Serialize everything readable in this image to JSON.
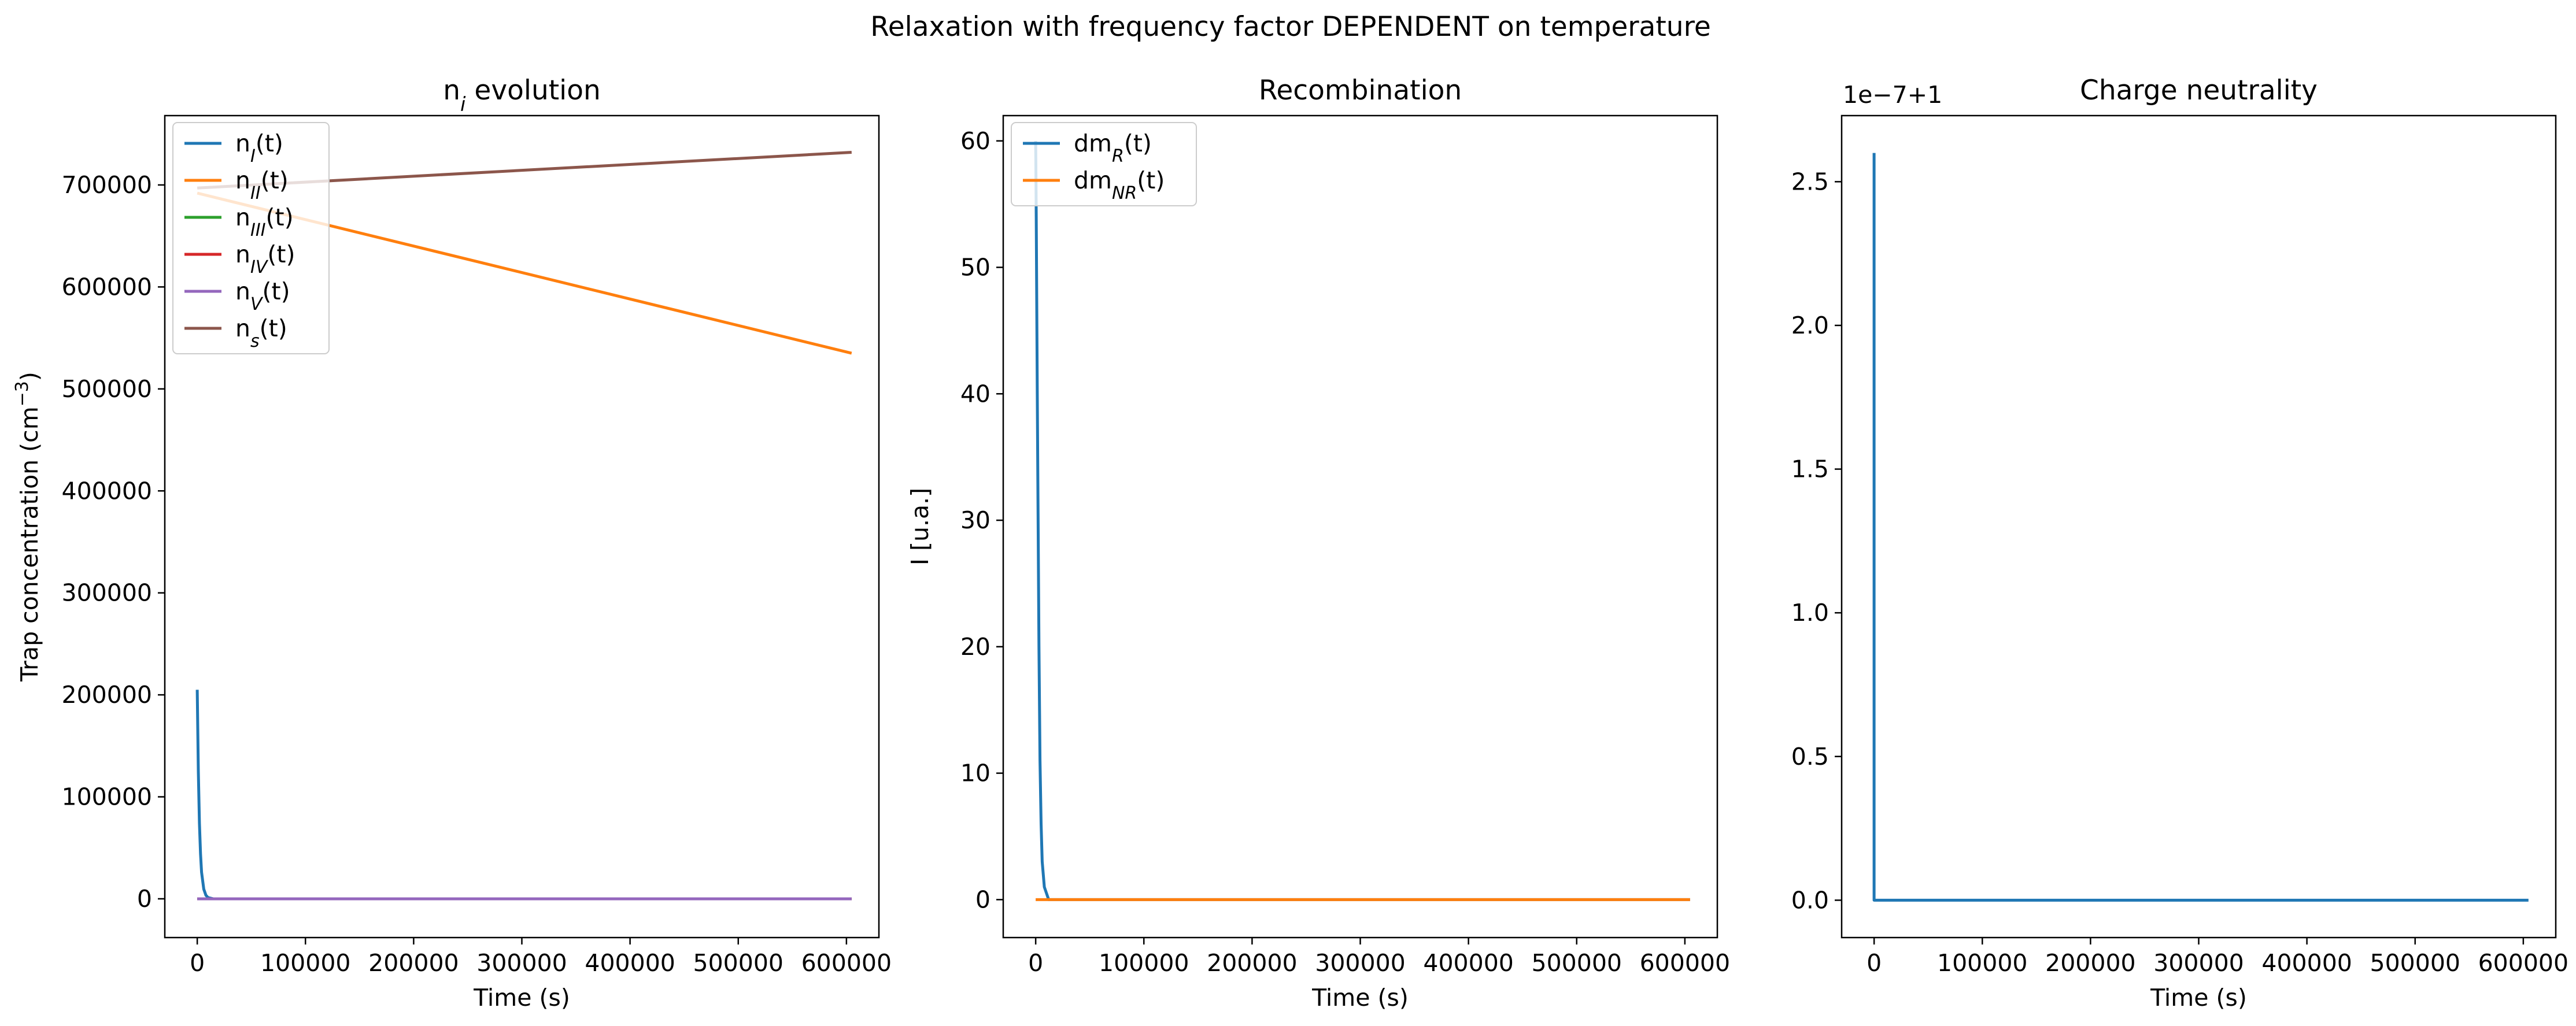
{
  "suptitle": "Relaxation with frequency factor DEPENDENT on temperature",
  "chart_data": [
    {
      "type": "line",
      "title_main": "n",
      "title_sub": "i",
      "title_rest": " evolution",
      "xlabel": "Time (s)",
      "ylabel_main": "Trap concentration (cm",
      "ylabel_sup": "−3",
      "ylabel_end": ")",
      "xlim": [
        -30000,
        630000
      ],
      "ylim": [
        -38000,
        768000
      ],
      "xticks": [
        0,
        100000,
        200000,
        300000,
        400000,
        500000,
        600000
      ],
      "xtick_labels": [
        "0",
        "100000",
        "200000",
        "300000",
        "400000",
        "500000",
        "600000"
      ],
      "yticks": [
        0,
        100000,
        200000,
        300000,
        400000,
        500000,
        600000,
        700000
      ],
      "ytick_labels": [
        "0",
        "100000",
        "200000",
        "300000",
        "400000",
        "500000",
        "600000",
        "700000"
      ],
      "legend_position": "upper left",
      "series": [
        {
          "label_main": "n",
          "label_sub": "I",
          "label_rest": "(t)",
          "color": "#1f77b4",
          "x": [
            0,
            1000,
            2000,
            3000,
            4000,
            6000,
            8000,
            10000,
            15000,
            604800
          ],
          "y": [
            205000,
            125000,
            74000,
            44000,
            26000,
            9500,
            3500,
            1200,
            0,
            0
          ]
        },
        {
          "label_main": "n",
          "label_sub": "II",
          "label_rest": "(t)",
          "color": "#ff7f0e",
          "x": [
            0,
            604800
          ],
          "y": [
            692000,
            535000
          ]
        },
        {
          "label_main": "n",
          "label_sub": "III",
          "label_rest": "(t)",
          "color": "#2ca02c",
          "x": [
            0,
            604800
          ],
          "y": [
            0,
            0
          ]
        },
        {
          "label_main": "n",
          "label_sub": "IV",
          "label_rest": "(t)",
          "color": "#d62728",
          "x": [
            0,
            604800
          ],
          "y": [
            0,
            0
          ]
        },
        {
          "label_main": "n",
          "label_sub": "V",
          "label_rest": "(t)",
          "color": "#9467bd",
          "x": [
            0,
            604800
          ],
          "y": [
            0,
            0
          ]
        },
        {
          "label_main": "n",
          "label_sub": "s",
          "label_rest": "(t)",
          "color": "#8c564b",
          "x": [
            0,
            604800
          ],
          "y": [
            697000,
            732000
          ]
        }
      ]
    },
    {
      "type": "line",
      "title_main": "Recombination",
      "title_sub": "",
      "title_rest": "",
      "xlabel": "Time (s)",
      "ylabel_main": "I [u.a.]",
      "ylabel_sup": "",
      "ylabel_end": "",
      "xlim": [
        -30000,
        630000
      ],
      "ylim": [
        -3,
        62
      ],
      "xticks": [
        0,
        100000,
        200000,
        300000,
        400000,
        500000,
        600000
      ],
      "xtick_labels": [
        "0",
        "100000",
        "200000",
        "300000",
        "400000",
        "500000",
        "600000"
      ],
      "yticks": [
        0,
        10,
        20,
        30,
        40,
        50,
        60
      ],
      "ytick_labels": [
        "0",
        "10",
        "20",
        "30",
        "40",
        "50",
        "60"
      ],
      "legend_position": "upper left",
      "series": [
        {
          "label_main": "dm",
          "label_sub": "R",
          "label_rest": "(t)",
          "color": "#1f77b4",
          "x": [
            0,
            200,
            500,
            1000,
            1500,
            2000,
            3000,
            4000,
            5000,
            6000,
            8000,
            12000,
            604800
          ],
          "y": [
            60,
            58,
            54,
            47,
            40,
            33,
            20,
            11,
            6,
            3,
            1,
            0,
            0
          ]
        },
        {
          "label_main": "dm",
          "label_sub": "NR",
          "label_rest": "(t)",
          "color": "#ff7f0e",
          "x": [
            0,
            604800
          ],
          "y": [
            0,
            0
          ]
        }
      ]
    },
    {
      "type": "line",
      "title_main": "Charge neutrality",
      "title_sub": "",
      "title_rest": "",
      "xlabel": "Time (s)",
      "ylabel_main": "",
      "ylabel_sup": "",
      "ylabel_end": "",
      "offset_text": "1e−7+1",
      "xlim": [
        -30000,
        630000
      ],
      "ylim": [
        -0.13,
        2.73
      ],
      "xticks": [
        0,
        100000,
        200000,
        300000,
        400000,
        500000,
        600000
      ],
      "xtick_labels": [
        "0",
        "100000",
        "200000",
        "300000",
        "400000",
        "500000",
        "600000"
      ],
      "yticks": [
        0,
        0.5,
        1.0,
        1.5,
        2.0,
        2.5
      ],
      "ytick_labels": [
        "0.0",
        "0.5",
        "1.0",
        "1.5",
        "2.0",
        "2.5"
      ],
      "series": [
        {
          "label_main": "",
          "label_sub": "",
          "label_rest": "",
          "color": "#1f77b4",
          "x": [
            0,
            0,
            604800
          ],
          "y": [
            2.6,
            0,
            0
          ]
        }
      ]
    }
  ]
}
